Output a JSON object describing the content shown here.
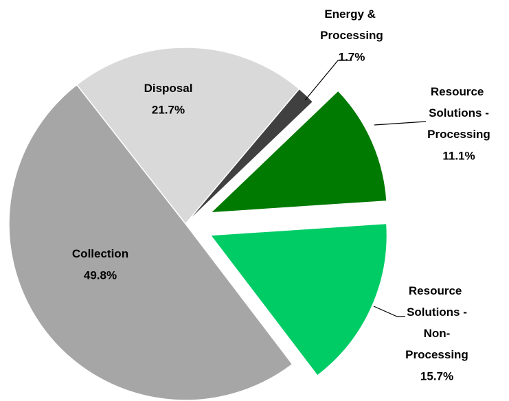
{
  "chart_data": {
    "type": "pie",
    "categories": [
      "Disposal",
      "Energy & Processing",
      "Resource Solutions - Processing",
      "Resource Solutions - Non-Processing",
      "Collection"
    ],
    "values": [
      21.7,
      1.7,
      11.1,
      15.7,
      49.8
    ],
    "value_labels": [
      "21.7%",
      "1.7%",
      "11.1%",
      "15.7%",
      "49.8%"
    ],
    "colors": [
      "#d9d9d9",
      "#404040",
      "#007a00",
      "#00cc66",
      "#a6a6a6"
    ],
    "exploded": [
      false,
      false,
      true,
      true,
      false
    ]
  }
}
